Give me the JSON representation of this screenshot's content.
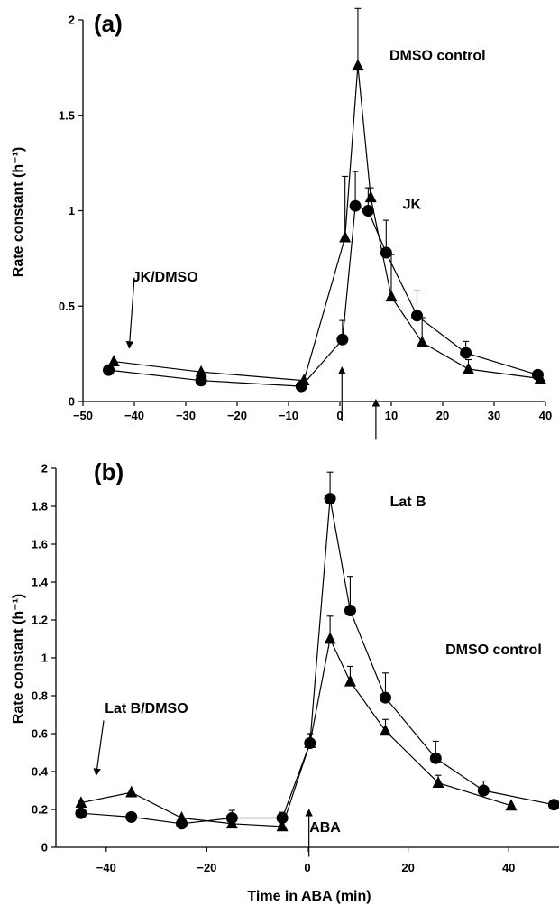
{
  "chart_data": [
    {
      "type": "line",
      "panel_label": "(a)",
      "ylabel": "Rate constant (h⁻¹)",
      "xlabel": "",
      "xlim": [
        -50,
        40
      ],
      "ylim": [
        0,
        2
      ],
      "x_ticks": [
        "-50",
        "-40",
        "-30",
        "-20",
        "-10",
        "0",
        "10",
        "20",
        "30",
        "40"
      ],
      "x_tick_values": [
        -50,
        -40,
        -30,
        -20,
        -10,
        0,
        10,
        20,
        30,
        40
      ],
      "y_ticks": [
        "0",
        "0.5",
        "1",
        "1.5",
        "2"
      ],
      "y_tick_values": [
        0,
        0.5,
        1,
        1.5,
        2
      ],
      "series": [
        {
          "marker": "triangle",
          "points": [
            {
              "x": -44,
              "y": 0.21
            },
            {
              "x": -27,
              "y": 0.155
            },
            {
              "x": -7,
              "y": 0.11
            },
            {
              "x": 1,
              "y": 0.86,
              "err": 0.32
            },
            {
              "x": 3.5,
              "y": 1.76,
              "err": 0.3
            },
            {
              "x": 6,
              "y": 1.07,
              "err": 0.05
            },
            {
              "x": 10,
              "y": 0.55,
              "err": 0.22
            },
            {
              "x": 16,
              "y": 0.31,
              "err": 0.13
            },
            {
              "x": 25,
              "y": 0.17,
              "err": 0.05
            },
            {
              "x": 39,
              "y": 0.12
            }
          ]
        },
        {
          "marker": "circle",
          "points": [
            {
              "x": -45,
              "y": 0.165
            },
            {
              "x": -27,
              "y": 0.11
            },
            {
              "x": -7.5,
              "y": 0.08
            },
            {
              "x": 0.5,
              "y": 0.325,
              "err": 0.1
            },
            {
              "x": 3,
              "y": 1.025,
              "err": 0.18
            },
            {
              "x": 5.5,
              "y": 1.0,
              "err": 0.12
            },
            {
              "x": 9,
              "y": 0.78,
              "err": 0.17
            },
            {
              "x": 15,
              "y": 0.45,
              "err": 0.13
            },
            {
              "x": 24.5,
              "y": 0.255,
              "err": 0.06
            },
            {
              "x": 38.5,
              "y": 0.14
            }
          ]
        }
      ],
      "annotations": [
        {
          "text": "DMSO control",
          "x": 19,
          "y": 1.79
        },
        {
          "text": "JK",
          "x": 14,
          "y": 1.01
        },
        {
          "text": "JK/DMSO",
          "x": -34,
          "y": 0.63
        }
      ],
      "arrows": [
        {
          "from": [
            -40,
            0.65
          ],
          "to": [
            -41,
            0.28
          ]
        },
        {
          "from": [
            0.4,
            -0.1
          ],
          "to": [
            0.4,
            0.18
          ]
        },
        {
          "from": [
            7,
            -0.2
          ],
          "to": [
            7,
            0.01
          ]
        }
      ]
    },
    {
      "type": "line",
      "panel_label": "(b)",
      "ylabel": "Rate constant (h⁻¹)",
      "xlabel": "Time in ABA (min)",
      "xlim": [
        -50,
        50
      ],
      "ylim": [
        0,
        2
      ],
      "x_ticks": [
        "-40",
        "-20",
        "0",
        "20",
        "40"
      ],
      "x_tick_values": [
        -40,
        -20,
        0,
        20,
        40
      ],
      "y_ticks": [
        "0",
        "0.2",
        "0.4",
        "0.6",
        "0.8",
        "1",
        "1.2",
        "1.4",
        "1.6",
        "1.8",
        "2"
      ],
      "y_tick_values": [
        0,
        0.2,
        0.4,
        0.6,
        0.8,
        1,
        1.2,
        1.4,
        1.6,
        1.8,
        2
      ],
      "series": [
        {
          "marker": "circle",
          "points": [
            {
              "x": -45,
              "y": 0.18
            },
            {
              "x": -35,
              "y": 0.16
            },
            {
              "x": -25,
              "y": 0.125
            },
            {
              "x": -15,
              "y": 0.155,
              "err": 0.04
            },
            {
              "x": -5,
              "y": 0.155,
              "err": 0.03
            },
            {
              "x": 0.5,
              "y": 0.55,
              "err": 0.05
            },
            {
              "x": 4.5,
              "y": 1.84,
              "err": 0.14
            },
            {
              "x": 8.5,
              "y": 1.25,
              "err": 0.18
            },
            {
              "x": 15.5,
              "y": 0.79,
              "err": 0.13
            },
            {
              "x": 25.5,
              "y": 0.47,
              "err": 0.09
            },
            {
              "x": 35,
              "y": 0.3,
              "err": 0.05
            },
            {
              "x": 49,
              "y": 0.225
            }
          ]
        },
        {
          "marker": "triangle",
          "points": [
            {
              "x": -45,
              "y": 0.235
            },
            {
              "x": -35,
              "y": 0.29
            },
            {
              "x": -25,
              "y": 0.155
            },
            {
              "x": -15,
              "y": 0.125
            },
            {
              "x": -5,
              "y": 0.11
            },
            {
              "x": 0.5,
              "y": 0.55,
              "err": 0.05
            },
            {
              "x": 4.5,
              "y": 1.1,
              "err": 0.12
            },
            {
              "x": 8.5,
              "y": 0.875,
              "err": 0.08
            },
            {
              "x": 15.5,
              "y": 0.615,
              "err": 0.06
            },
            {
              "x": 26,
              "y": 0.34,
              "err": 0.04
            },
            {
              "x": 40.5,
              "y": 0.22
            }
          ]
        }
      ],
      "annotations": [
        {
          "text": "Lat B",
          "x": 20,
          "y": 1.8
        },
        {
          "text": "DMSO control",
          "x": 37,
          "y": 1.02
        },
        {
          "text": "Lat B/DMSO",
          "x": -32,
          "y": 0.71
        },
        {
          "text": "ABA",
          "x": 3.5,
          "y": 0.08
        }
      ],
      "arrows": [
        {
          "from": [
            -40.5,
            0.67
          ],
          "to": [
            -42,
            0.38
          ]
        },
        {
          "from": [
            0.3,
            -0.05
          ],
          "to": [
            0.3,
            0.2
          ]
        }
      ]
    }
  ]
}
